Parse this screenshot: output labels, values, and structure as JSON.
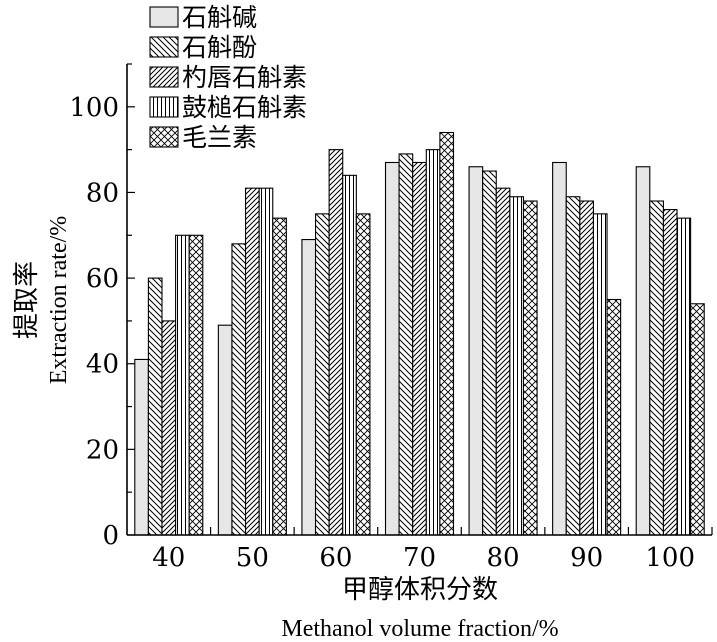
{
  "chart_data": {
    "type": "bar",
    "categories": [
      "40",
      "50",
      "60",
      "70",
      "80",
      "90",
      "100"
    ],
    "series": [
      {
        "name": "石斛碱",
        "values": [
          41,
          49,
          69,
          87,
          86,
          87,
          86
        ]
      },
      {
        "name": "石斛酚",
        "values": [
          60,
          68,
          75,
          89,
          85,
          79,
          78
        ]
      },
      {
        "name": "杓唇石斛素",
        "values": [
          50,
          81,
          90,
          87,
          81,
          78,
          76
        ]
      },
      {
        "name": "鼓槌石斛素",
        "values": [
          70,
          81,
          84,
          90,
          79,
          75,
          74
        ]
      },
      {
        "name": "毛兰素",
        "values": [
          70,
          74,
          75,
          94,
          78,
          55,
          54
        ]
      }
    ],
    "ylim": [
      0,
      110
    ],
    "yticks": [
      0,
      20,
      40,
      60,
      80,
      100
    ],
    "xlabel": "甲醇体积分数",
    "xlabel_en": "Methanol volume fraction/%",
    "ylabel": "提取率",
    "ylabel_en": "Extraction rate/%",
    "legend_position": "top-left",
    "grid": false
  }
}
